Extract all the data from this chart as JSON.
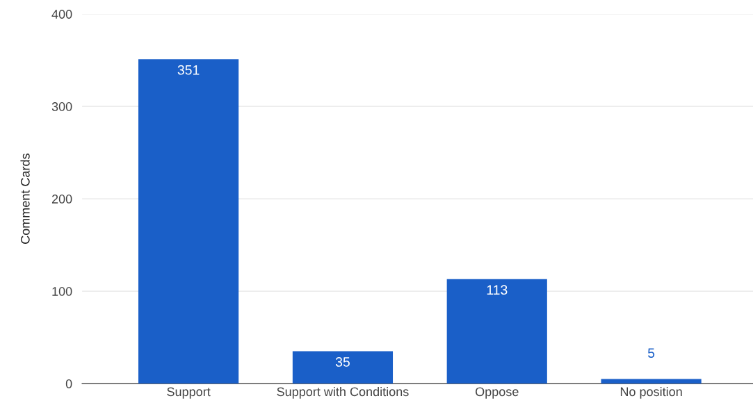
{
  "chart_data": {
    "type": "bar",
    "ylabel": "Comment Cards",
    "categories": [
      "Support",
      "Support with Conditions",
      "Oppose",
      "No position"
    ],
    "values": [
      351,
      35,
      113,
      5
    ],
    "color": "#1a5fc8",
    "ylim": [
      0,
      400
    ],
    "yticks": [
      0,
      100,
      200,
      300,
      400
    ],
    "grid": "y",
    "data_labels": true
  }
}
